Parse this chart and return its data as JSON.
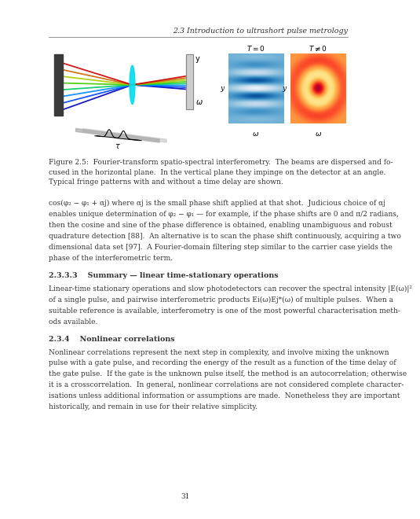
{
  "page_width": 4.53,
  "page_height": 6.4,
  "bg_color": "#ffffff",
  "header_text": "2.3 Introduction to ultrashort pulse metrology",
  "header_fontsize": 6.8,
  "header_color": "#333333",
  "body_text_color": "#333333",
  "body_fontsize": 6.5,
  "section_233_title": "2.3.3.3    Summary — linear time-stationary operations",
  "section_234_title": "2.3.4    Nonlinear correlations",
  "section_title_fontsize": 6.8,
  "figure_caption": "Figure 2.5:  Fourier-transform spatio-spectral interferometry.  The beams are dispersed and fo-\ncused in the horizontal plane.  In the vertical plane they impinge on the detector at an angle.\nTypical fringe patterns with and without a time delay are shown.",
  "body_para1_lines": [
    "cos(φ₂ − φ₁ + αj) where αj is the small phase shift applied at that shot.  Judicious choice of αj",
    "enables unique determination of φ₂ − φ₁ — for example, if the phase shifts are 0 and π/2 radians,",
    "then the cosine and sine of the phase difference is obtained, enabling unambiguous and robust",
    "quadrature detection [88].  An alternative is to scan the phase shift continuously, acquiring a two",
    "dimensional data set [97].  A Fourier-domain filtering step similar to the carrier case yields the",
    "phase of the interferometric term."
  ],
  "body_para2_lines": [
    "Linear-time stationary operations and slow photodetectors can recover the spectral intensity |E(ω)|²",
    "of a single pulse, and pairwise interferometric products Ei(ω)Ej*(ω) of multiple pulses.  When a",
    "suitable reference is available, interferometry is one of the most powerful characterisation meth-",
    "ods available."
  ],
  "body_para3_lines": [
    "Nonlinear correlations represent the next step in complexity, and involve mixing the unknown",
    "pulse with a gate pulse, and recording the energy of the result as a function of the time delay of",
    "the gate pulse.  If the gate is the unknown pulse itself, the method is an autocorrelation; otherwise",
    "it is a crosscorrelation.  In general, nonlinear correlations are not considered complete character-",
    "isations unless additional information or assumptions are made.  Nonetheless they are important",
    "historically, and remain in use for their relative simplicity."
  ],
  "page_number": "31",
  "line_color": "#666666"
}
